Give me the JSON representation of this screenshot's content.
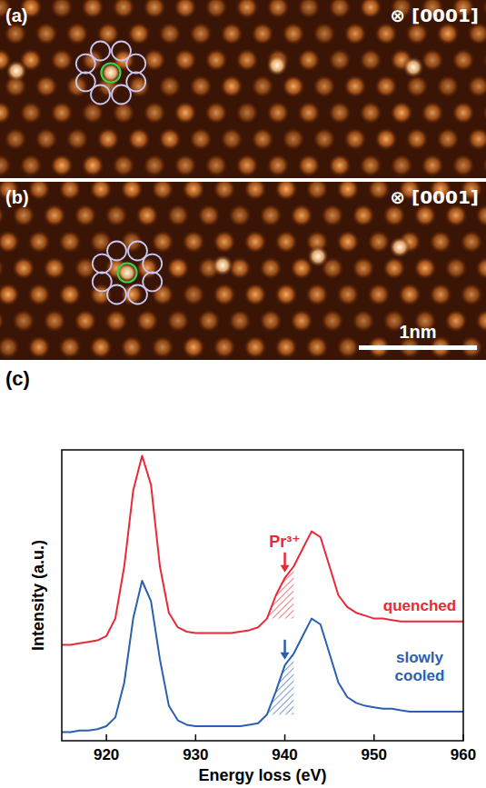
{
  "panels": [
    {
      "label": "(a)",
      "direction": "⊗ [0001]"
    },
    {
      "label": "(b)",
      "direction": "⊗ [0001]",
      "scale_bar": "1nm"
    }
  ],
  "chart_data": {
    "type": "line",
    "title": "(c)",
    "xlabel": "Energy loss (eV)",
    "ylabel": "Intensity (a.u.)",
    "x": [
      915,
      916,
      917,
      918,
      919,
      920,
      921,
      922,
      923,
      924,
      925,
      926,
      927,
      928,
      929,
      930,
      931,
      932,
      933,
      934,
      935,
      936,
      937,
      938,
      939,
      940,
      941,
      942,
      943,
      944,
      945,
      946,
      947,
      948,
      949,
      950,
      951,
      952,
      953,
      954,
      955,
      956,
      957,
      958,
      959,
      960
    ],
    "series": [
      {
        "name": "quenched",
        "color": "#e8293a",
        "values": [
          0.33,
          0.33,
          0.335,
          0.34,
          0.345,
          0.36,
          0.42,
          0.6,
          0.86,
          0.98,
          0.88,
          0.6,
          0.44,
          0.39,
          0.375,
          0.37,
          0.37,
          0.37,
          0.37,
          0.37,
          0.375,
          0.38,
          0.39,
          0.42,
          0.5,
          0.56,
          0.6,
          0.66,
          0.72,
          0.7,
          0.6,
          0.5,
          0.46,
          0.44,
          0.43,
          0.42,
          0.42,
          0.415,
          0.41,
          0.41,
          0.41,
          0.41,
          0.41,
          0.41,
          0.41,
          0.41
        ]
      },
      {
        "name": "slowly cooled",
        "color": "#2b5fb0",
        "values": [
          0.03,
          0.03,
          0.035,
          0.035,
          0.04,
          0.05,
          0.08,
          0.2,
          0.42,
          0.55,
          0.48,
          0.28,
          0.12,
          0.07,
          0.055,
          0.05,
          0.05,
          0.05,
          0.05,
          0.05,
          0.05,
          0.055,
          0.06,
          0.09,
          0.17,
          0.26,
          0.3,
          0.36,
          0.42,
          0.4,
          0.3,
          0.2,
          0.15,
          0.13,
          0.12,
          0.115,
          0.11,
          0.11,
          0.105,
          0.1,
          0.1,
          0.1,
          0.1,
          0.1,
          0.1,
          0.1
        ]
      }
    ],
    "annotations": [
      {
        "text": "Pr³⁺",
        "x": 940,
        "shade": [
          938,
          941
        ]
      }
    ],
    "xlim": [
      915,
      960
    ],
    "xticks": [
      920,
      930,
      940,
      950,
      960
    ],
    "ylim": [
      0,
      1
    ],
    "tick_labels": "x",
    "grid": false
  }
}
